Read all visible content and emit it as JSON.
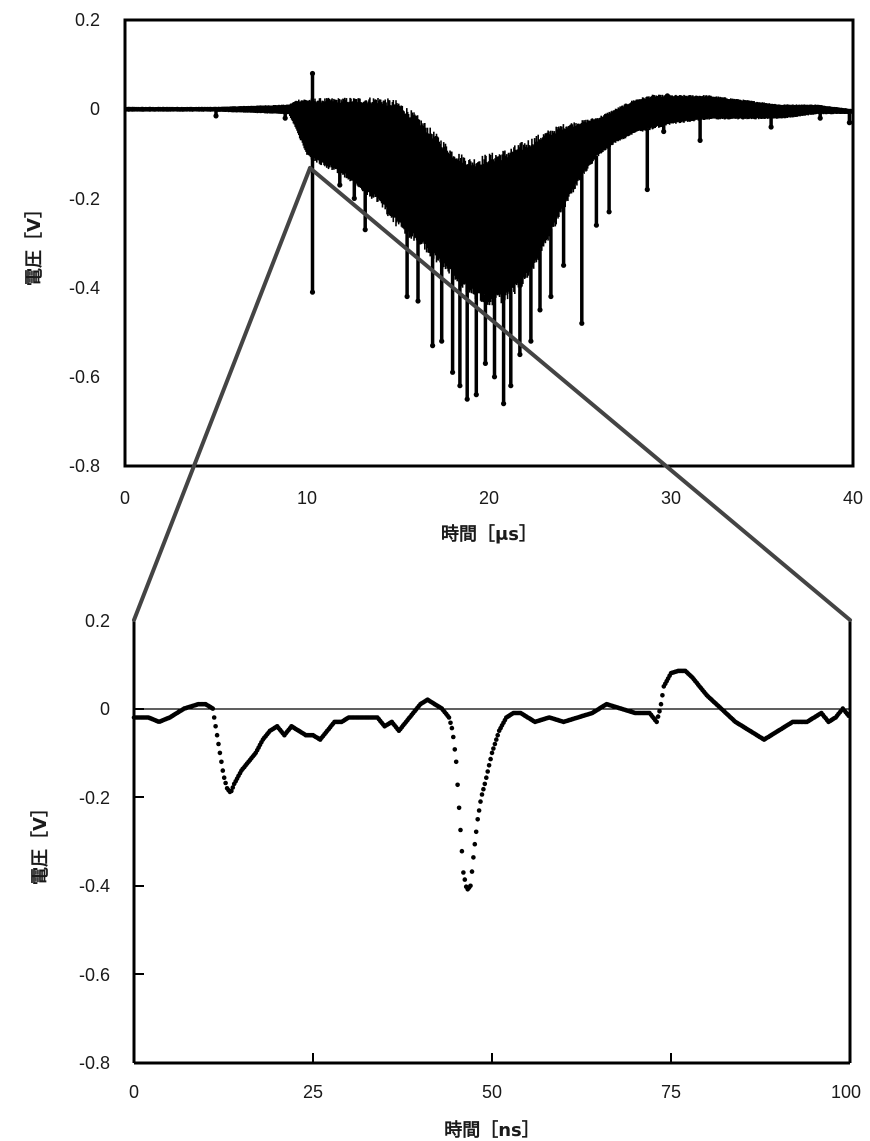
{
  "chart_data": [
    {
      "type": "scatter",
      "xlabel": "時間［μs］",
      "ylabel": "電圧［V］",
      "xlim": [
        0,
        40
      ],
      "ylim": [
        -0.8,
        0.2
      ],
      "x_ticks": [
        "0",
        "10",
        "20",
        "30",
        "40"
      ],
      "y_ticks": [
        "0.2",
        "0",
        "-0.2",
        "-0.4",
        "-0.6",
        "-0.8"
      ],
      "grid": false,
      "color": "#000000",
      "envelope": {
        "x": [
          0,
          5,
          9,
          9.5,
          10,
          11,
          12,
          13,
          14,
          15,
          16,
          17,
          18,
          19,
          20,
          21,
          22,
          23,
          24,
          25,
          26,
          27,
          28,
          29,
          30,
          32,
          34,
          36,
          38,
          40
        ],
        "upper": [
          0.005,
          0.005,
          0.01,
          0.02,
          0.02,
          0.02,
          0.02,
          0.02,
          0.02,
          0.01,
          -0.02,
          -0.06,
          -0.1,
          -0.12,
          -0.11,
          -0.1,
          -0.08,
          -0.06,
          -0.04,
          -0.03,
          -0.02,
          0.0,
          0.02,
          0.03,
          0.03,
          0.03,
          0.02,
          0.01,
          0.01,
          0.0
        ],
        "lower": [
          -0.005,
          -0.005,
          -0.01,
          -0.05,
          -0.1,
          -0.12,
          -0.14,
          -0.17,
          -0.2,
          -0.25,
          -0.28,
          -0.32,
          -0.36,
          -0.4,
          -0.42,
          -0.41,
          -0.37,
          -0.3,
          -0.22,
          -0.15,
          -0.1,
          -0.07,
          -0.05,
          -0.04,
          -0.03,
          -0.02,
          -0.02,
          -0.02,
          -0.01,
          -0.01
        ]
      },
      "spikes": [
        {
          "x": 5.0,
          "y": -0.015
        },
        {
          "x": 8.8,
          "y": -0.02
        },
        {
          "x": 10.3,
          "y": -0.41
        },
        {
          "x": 10.3,
          "y": 0.08
        },
        {
          "x": 11.8,
          "y": -0.17
        },
        {
          "x": 12.6,
          "y": -0.2
        },
        {
          "x": 13.2,
          "y": -0.27
        },
        {
          "x": 15.5,
          "y": -0.42
        },
        {
          "x": 16.1,
          "y": -0.43
        },
        {
          "x": 16.9,
          "y": -0.53
        },
        {
          "x": 17.4,
          "y": -0.52
        },
        {
          "x": 18.0,
          "y": -0.59
        },
        {
          "x": 18.4,
          "y": -0.62
        },
        {
          "x": 18.8,
          "y": -0.65
        },
        {
          "x": 19.3,
          "y": -0.64
        },
        {
          "x": 19.8,
          "y": -0.57
        },
        {
          "x": 20.3,
          "y": -0.6
        },
        {
          "x": 20.8,
          "y": -0.66
        },
        {
          "x": 21.2,
          "y": -0.62
        },
        {
          "x": 21.7,
          "y": -0.55
        },
        {
          "x": 22.3,
          "y": -0.52
        },
        {
          "x": 22.8,
          "y": -0.45
        },
        {
          "x": 23.4,
          "y": -0.42
        },
        {
          "x": 24.1,
          "y": -0.35
        },
        {
          "x": 25.1,
          "y": -0.48
        },
        {
          "x": 25.9,
          "y": -0.26
        },
        {
          "x": 26.6,
          "y": -0.23
        },
        {
          "x": 28.7,
          "y": -0.18
        },
        {
          "x": 29.6,
          "y": -0.05
        },
        {
          "x": 29.8,
          "y": 0.03
        },
        {
          "x": 31.6,
          "y": -0.07
        },
        {
          "x": 35.5,
          "y": -0.04
        },
        {
          "x": 38.2,
          "y": -0.02
        },
        {
          "x": 39.8,
          "y": -0.03
        }
      ]
    },
    {
      "type": "scatter",
      "xlabel": "時間［ns］",
      "ylabel": "電圧［V］",
      "xlim": [
        0,
        100
      ],
      "ylim": [
        -0.8,
        0.2
      ],
      "x_ticks": [
        "0",
        "25",
        "50",
        "75",
        "100"
      ],
      "y_ticks": [
        "0.2",
        "0",
        "-0.2",
        "-0.4",
        "-0.6",
        "-0.8"
      ],
      "grid": false,
      "zero_line": true,
      "color": "#000000",
      "keypoints": {
        "x": [
          0,
          2,
          3.5,
          5,
          6,
          7,
          8,
          9,
          10,
          11,
          11.5,
          12,
          12.5,
          13,
          13.5,
          14,
          15,
          16,
          17,
          18,
          19,
          20,
          21,
          22,
          23,
          24,
          25,
          26,
          27,
          28,
          29,
          30,
          32,
          34,
          35,
          36,
          37,
          38,
          39,
          40,
          41,
          42,
          43,
          44,
          44.5,
          45,
          45.5,
          46,
          46.5,
          47,
          47.5,
          48,
          48.5,
          49,
          50,
          51,
          52,
          53,
          54,
          56,
          58,
          60,
          62,
          64,
          66,
          68,
          70,
          72,
          73,
          73.5,
          74,
          75,
          76,
          77,
          78,
          79,
          80,
          82,
          84,
          86,
          88,
          90,
          92,
          94,
          95,
          96,
          97,
          98,
          99,
          100
        ],
        "y": [
          -0.02,
          -0.02,
          -0.03,
          -0.02,
          -0.01,
          0.0,
          0.005,
          0.01,
          0.01,
          0.0,
          -0.05,
          -0.1,
          -0.15,
          -0.18,
          -0.19,
          -0.17,
          -0.14,
          -0.12,
          -0.1,
          -0.07,
          -0.05,
          -0.04,
          -0.06,
          -0.04,
          -0.05,
          -0.06,
          -0.06,
          -0.07,
          -0.05,
          -0.03,
          -0.03,
          -0.02,
          -0.02,
          -0.02,
          -0.04,
          -0.03,
          -0.05,
          -0.03,
          -0.01,
          0.01,
          0.02,
          0.01,
          0.0,
          -0.02,
          -0.05,
          -0.12,
          -0.25,
          -0.37,
          -0.41,
          -0.4,
          -0.32,
          -0.25,
          -0.2,
          -0.17,
          -0.1,
          -0.05,
          -0.02,
          -0.01,
          -0.01,
          -0.03,
          -0.02,
          -0.03,
          -0.02,
          -0.01,
          0.01,
          0.0,
          -0.01,
          -0.01,
          -0.03,
          0.0,
          0.05,
          0.08,
          0.085,
          0.085,
          0.07,
          0.05,
          0.03,
          0.0,
          -0.03,
          -0.05,
          -0.07,
          -0.05,
          -0.03,
          -0.03,
          -0.02,
          -0.01,
          -0.03,
          -0.02,
          0.0,
          -0.02
        ]
      }
    }
  ]
}
